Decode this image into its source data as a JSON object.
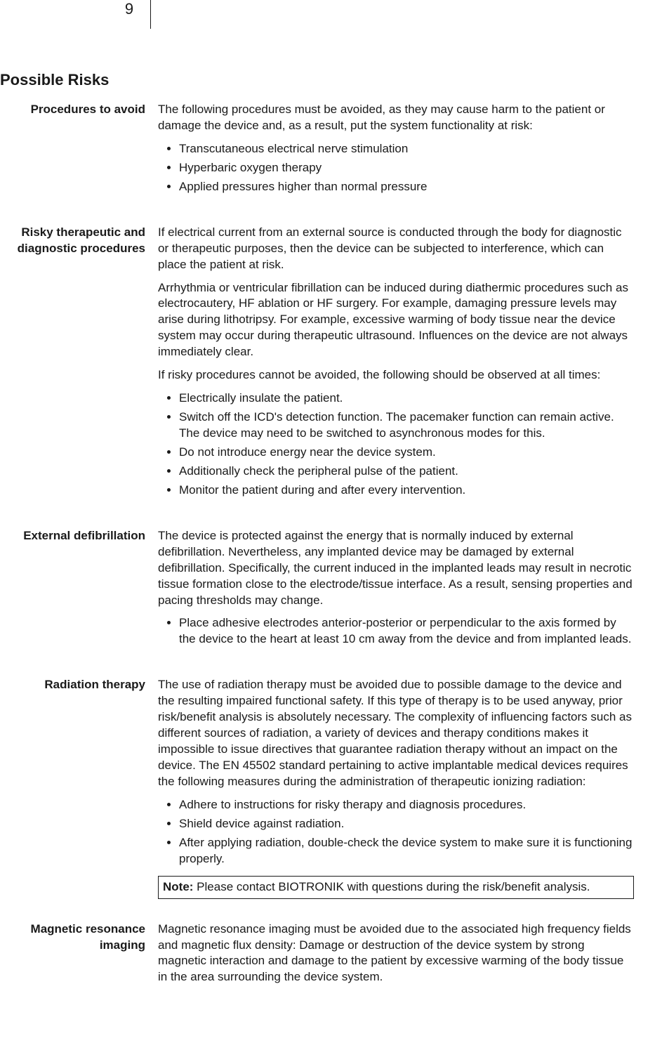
{
  "page": {
    "number": "9",
    "heading": "Possible Risks",
    "fontsize_heading": 22,
    "fontsize_body": 17,
    "text_color": "#1a1a1a",
    "background_color": "#ffffff"
  },
  "entries": {
    "procedures_to_avoid": {
      "label": "Procedures to avoid",
      "intro": "The following procedures must be avoided, as they may cause harm to the patient or damage the device and, as a result, put the system functionality at risk:",
      "bullets": [
        "Transcutaneous electrical nerve stimulation",
        "Hyperbaric oxygen therapy",
        "Applied pressures higher than normal pressure"
      ]
    },
    "risky_procedures": {
      "label": "Risky therapeutic and diagnostic procedures",
      "para1": "If electrical current from an external source is conducted through the body for diagnostic or therapeutic purposes, then the device can be subjected to interference, which can place the patient at risk.",
      "para2": "Arrhythmia or ventricular fibrillation can be induced during diathermic procedures such as electrocautery, HF ablation or HF surgery. For example, damaging pressure levels may arise during lithotripsy. For example, excessive warming of body tissue near the device system may occur during therapeutic ultrasound. Influences on the device are not always immediately clear.",
      "para3": "If risky procedures cannot be avoided, the following should be observed at all times:",
      "bullets": [
        "Electrically insulate the patient.",
        "Switch off the ICD's detection function. The pacemaker function can remain active. The device may need to be switched to asynchronous modes for this.",
        "Do not introduce energy near the device system.",
        "Additionally check the peripheral pulse of the patient.",
        "Monitor the patient during and after every intervention."
      ]
    },
    "external_defibrillation": {
      "label": "External defibrillation",
      "para1": "The device is protected against the energy that is normally induced by external defibrillation. Nevertheless, any implanted device may be damaged by external defibrillation. Specifically, the current induced in the implanted leads may result in necrotic tissue formation close to the electrode/tissue interface. As a result, sensing properties and pacing thresholds may change.",
      "bullets": [
        "Place adhesive electrodes anterior-posterior or perpendicular to the axis formed by the device to the heart at least 10 cm away from the device and from implanted leads."
      ]
    },
    "radiation_therapy": {
      "label": "Radiation therapy",
      "para1": "The use of radiation therapy must be avoided due to possible damage to the device and the resulting impaired functional safety. If this type of therapy is to be used anyway, prior risk/benefit analysis is absolutely necessary. The complexity of influencing factors such as different sources of radiation, a variety of devices and therapy conditions makes it impossible to issue directives that guarantee radiation therapy without an impact on the device. The EN 45502 standard pertaining to active implantable medical devices requires the following measures during the administration of therapeutic ionizing radiation:",
      "bullets": [
        "Adhere to instructions for risky therapy and diagnosis procedures.",
        "Shield device against radiation.",
        "After applying radiation, double-check the device system to make sure it is functioning properly."
      ],
      "note_label": "Note:",
      "note_text": " Please contact BIOTRONIK with questions during the risk/benefit analysis."
    },
    "mri": {
      "label": "Magnetic resonance imaging",
      "para1": "Magnetic resonance imaging must be avoided due to the associated high frequency fields and magnetic flux density: Damage or destruction of the device system by strong magnetic interaction and damage to the patient by excessive warming of the body tissue in the area surrounding the device system."
    }
  }
}
